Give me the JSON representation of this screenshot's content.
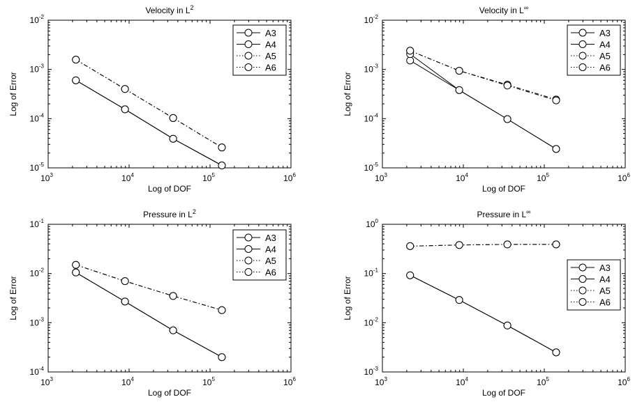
{
  "chart_data": [
    {
      "type": "line",
      "title": "Velocity in L",
      "title_sup": "2",
      "xlabel": "Log of DOF",
      "ylabel": "Log of Error",
      "xscale": "log",
      "yscale": "log",
      "xlim": [
        1000,
        1000000
      ],
      "ylim": [
        1e-05,
        0.01
      ],
      "x_ticks": [
        {
          "base": "10",
          "exp": "3"
        },
        {
          "base": "10",
          "exp": "4"
        },
        {
          "base": "10",
          "exp": "5"
        },
        {
          "base": "10",
          "exp": "6"
        }
      ],
      "y_ticks": [
        {
          "base": "10",
          "exp": "-5"
        },
        {
          "base": "10",
          "exp": "-4"
        },
        {
          "base": "10",
          "exp": "-3"
        },
        {
          "base": "10",
          "exp": "-2"
        }
      ],
      "legend_position": "top-right",
      "grid": false,
      "x": [
        2200,
        8900,
        35000,
        140000
      ],
      "series": [
        {
          "name": "A3",
          "line_style": "solid",
          "values": [
            0.0006,
            0.000155,
            3.9e-05,
            1.12e-05
          ]
        },
        {
          "name": "A4",
          "line_style": "solid",
          "values": [
            0.0006,
            0.000155,
            3.9e-05,
            1.12e-05
          ]
        },
        {
          "name": "A5",
          "line_style": "dashdot",
          "values": [
            0.00158,
            0.0004,
            0.000103,
            2.6e-05
          ]
        },
        {
          "name": "A6",
          "line_style": "dashdot",
          "values": [
            0.00158,
            0.0004,
            0.000103,
            2.6e-05
          ]
        }
      ]
    },
    {
      "type": "line",
      "title": "Velocity in L",
      "title_sup": "∞",
      "xlabel": "Log of DOF",
      "ylabel": "Log of Error",
      "xscale": "log",
      "yscale": "log",
      "xlim": [
        1000,
        1000000
      ],
      "ylim": [
        1e-05,
        0.01
      ],
      "x_ticks": [
        {
          "base": "10",
          "exp": "3"
        },
        {
          "base": "10",
          "exp": "4"
        },
        {
          "base": "10",
          "exp": "5"
        },
        {
          "base": "10",
          "exp": "6"
        }
      ],
      "y_ticks": [
        {
          "base": "10",
          "exp": "-5"
        },
        {
          "base": "10",
          "exp": "-4"
        },
        {
          "base": "10",
          "exp": "-3"
        },
        {
          "base": "10",
          "exp": "-2"
        }
      ],
      "legend_position": "top-right",
      "grid": false,
      "x": [
        2200,
        8900,
        35000,
        140000
      ],
      "series": [
        {
          "name": "A3",
          "line_style": "solid",
          "values": [
            0.00152,
            0.00038,
            9.8e-05,
            2.42e-05
          ]
        },
        {
          "name": "A4",
          "line_style": "solid",
          "values": [
            0.00205,
            0.00038,
            9.8e-05,
            2.42e-05
          ]
        },
        {
          "name": "A5",
          "line_style": "dashdot",
          "values": [
            0.0024,
            0.00094,
            0.00049,
            0.000245
          ]
        },
        {
          "name": "A6",
          "line_style": "dashdot",
          "values": [
            0.0024,
            0.00094,
            0.00047,
            0.000235
          ]
        }
      ]
    },
    {
      "type": "line",
      "title": "Pressure in L",
      "title_sup": "2",
      "xlabel": "Log of DOF",
      "ylabel": "Log of Error",
      "xscale": "log",
      "yscale": "log",
      "xlim": [
        1000,
        1000000
      ],
      "ylim": [
        0.0001,
        0.1
      ],
      "x_ticks": [
        {
          "base": "10",
          "exp": "3"
        },
        {
          "base": "10",
          "exp": "4"
        },
        {
          "base": "10",
          "exp": "5"
        },
        {
          "base": "10",
          "exp": "6"
        }
      ],
      "y_ticks": [
        {
          "base": "10",
          "exp": "-4"
        },
        {
          "base": "10",
          "exp": "-3"
        },
        {
          "base": "10",
          "exp": "-2"
        },
        {
          "base": "10",
          "exp": "-1"
        }
      ],
      "legend_position": "top-right",
      "grid": false,
      "x": [
        2200,
        8900,
        35000,
        140000
      ],
      "series": [
        {
          "name": "A3",
          "line_style": "solid",
          "values": [
            0.0105,
            0.0027,
            0.0007,
            0.0002
          ]
        },
        {
          "name": "A4",
          "line_style": "solid",
          "values": [
            0.0105,
            0.0027,
            0.0007,
            0.0002
          ]
        },
        {
          "name": "A5",
          "line_style": "dashdot",
          "values": [
            0.015,
            0.007,
            0.0035,
            0.0018
          ]
        },
        {
          "name": "A6",
          "line_style": "dashdot",
          "values": [
            0.015,
            0.007,
            0.0035,
            0.0018
          ]
        }
      ]
    },
    {
      "type": "line",
      "title": "Pressure in L",
      "title_sup": "∞",
      "xlabel": "Log of DOF",
      "ylabel": "Log of Error",
      "xscale": "log",
      "yscale": "log",
      "xlim": [
        1000,
        1000000
      ],
      "ylim": [
        0.001,
        1
      ],
      "x_ticks": [
        {
          "base": "10",
          "exp": "3"
        },
        {
          "base": "10",
          "exp": "4"
        },
        {
          "base": "10",
          "exp": "5"
        },
        {
          "base": "10",
          "exp": "6"
        }
      ],
      "y_ticks": [
        {
          "base": "10",
          "exp": "-3"
        },
        {
          "base": "10",
          "exp": "-2"
        },
        {
          "base": "10",
          "exp": "-1"
        },
        {
          "base": "10",
          "exp": "0"
        }
      ],
      "legend_position": "center-right",
      "grid": false,
      "x": [
        2200,
        8900,
        35000,
        140000
      ],
      "series": [
        {
          "name": "A3",
          "line_style": "solid",
          "values": [
            0.092,
            0.029,
            0.0088,
            0.0025
          ]
        },
        {
          "name": "A4",
          "line_style": "solid",
          "values": [
            0.092,
            0.029,
            0.0088,
            0.0025
          ]
        },
        {
          "name": "A5",
          "line_style": "dashdot",
          "values": [
            0.36,
            0.38,
            0.39,
            0.39
          ]
        },
        {
          "name": "A6",
          "line_style": "dashdot",
          "values": [
            0.36,
            0.38,
            0.39,
            0.39
          ]
        }
      ]
    }
  ]
}
